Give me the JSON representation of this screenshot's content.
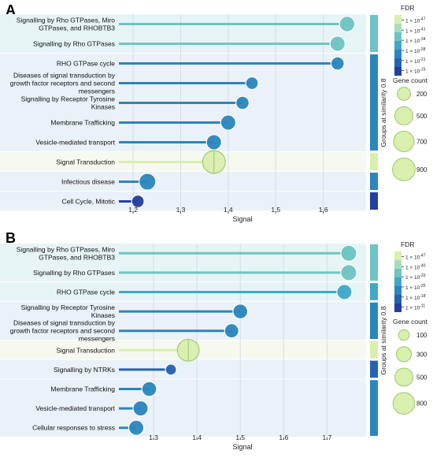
{
  "colors": {
    "fdr_scale": [
      "#d9efae",
      "#a6dcbd",
      "#6ec4c2",
      "#3fa8c8",
      "#2a86bd",
      "#2463ae",
      "#23409a"
    ],
    "band_light": "#eaf1f8",
    "band_teal": "#e6f4f5",
    "band_cream": "#f6f9ef",
    "grid": "#d8dde4"
  },
  "chart_data": [
    {
      "panel_label": "A",
      "type": "scatter",
      "xlabel": "Signal",
      "xlim": [
        1.17,
        1.69
      ],
      "xticks": [
        1.2,
        1.3,
        1.4,
        1.5,
        1.6
      ],
      "categories": [
        "Signalling by Rho GTPases, Miro GTPases, and RHOBTB3",
        "Signalling by Rho GTPases",
        "RHO GTPase cycle",
        "Diseases of signal transduction by growth factor receptors and second messengers",
        "Signalling by Receptor Tyrosine Kinases",
        "Membrane Trafficking",
        "Vesicle-mediated transport",
        "Signal Transduction",
        "Infectious disease",
        "Cell Cycle, Mitotic"
      ],
      "signal": [
        1.65,
        1.63,
        1.63,
        1.45,
        1.43,
        1.4,
        1.37,
        1.37,
        1.23,
        1.21
      ],
      "color_index": [
        2,
        2,
        4,
        4,
        4,
        4,
        4,
        0,
        4,
        6
      ],
      "gene_count": [
        320,
        300,
        200,
        170,
        200,
        300,
        300,
        900,
        400,
        170
      ],
      "groups": [
        {
          "start": 0,
          "end": 1,
          "color_index": 2,
          "band": "teal"
        },
        {
          "start": 2,
          "end": 6,
          "color_index": 4,
          "band": "light"
        },
        {
          "start": 7,
          "end": 7,
          "color_index": 0,
          "band": "cream"
        },
        {
          "start": 8,
          "end": 8,
          "color_index": 4,
          "band": "light"
        },
        {
          "start": 9,
          "end": 9,
          "color_index": 6,
          "band": "light"
        }
      ],
      "group_axis_label": "Groups at similarity 0.8",
      "legend": {
        "fdr_title": "FDR",
        "fdr_labels": [
          "1 × 10",
          "1 × 10",
          "1 × 10",
          "1 × 10",
          "1 × 10",
          "1 × 10"
        ],
        "fdr_exponents": [
          "-47",
          "-41",
          "-34",
          "-28",
          "-21",
          "-15"
        ],
        "size_title": "Gene count",
        "size_values": [
          200,
          500,
          700,
          900
        ],
        "size_labels": [
          "200",
          "500",
          "700",
          "900"
        ]
      }
    },
    {
      "panel_label": "B",
      "type": "scatter",
      "xlabel": "Signal",
      "xlim": [
        1.22,
        1.79
      ],
      "xticks": [
        1.3,
        1.4,
        1.5,
        1.6,
        1.7
      ],
      "categories": [
        "Signalling by Rho GTPases, Miro GTPases, and RHOBTB3",
        "Signalling by Rho GTPases",
        "RHO GTPase cycle",
        "Signalling by Receptor Tyrosine Kinases",
        "Diseases of signal transduction by growth factor receptors and second messengers",
        "Signal Transduction",
        "Signalling by NTRKs",
        "Membrane Trafficking",
        "Vesicle-mediated transport",
        "Cellular responses to stress"
      ],
      "signal": [
        1.75,
        1.75,
        1.74,
        1.5,
        1.48,
        1.38,
        1.34,
        1.29,
        1.27,
        1.26
      ],
      "color_index": [
        2,
        2,
        3,
        4,
        4,
        0,
        5,
        4,
        4,
        4
      ],
      "gene_count": [
        350,
        350,
        300,
        280,
        250,
        800,
        110,
        280,
        300,
        300
      ],
      "groups": [
        {
          "start": 0,
          "end": 1,
          "color_index": 2,
          "band": "teal"
        },
        {
          "start": 2,
          "end": 2,
          "color_index": 3,
          "band": "teal"
        },
        {
          "start": 3,
          "end": 4,
          "color_index": 4,
          "band": "light"
        },
        {
          "start": 5,
          "end": 5,
          "color_index": 0,
          "band": "cream"
        },
        {
          "start": 6,
          "end": 6,
          "color_index": 5,
          "band": "light"
        },
        {
          "start": 7,
          "end": 9,
          "color_index": 4,
          "band": "light"
        }
      ],
      "group_axis_label": "Groups at similarity 0.8",
      "legend": {
        "fdr_title": "FDR",
        "fdr_labels": [
          "1 × 10",
          "1 × 10",
          "1 × 10",
          "1 × 10",
          "1 × 10",
          "1 × 10"
        ],
        "fdr_exponents": [
          "-47",
          "-40",
          "-33",
          "-25",
          "-18",
          "-11"
        ],
        "size_title": "Gene count",
        "size_values": [
          100,
          300,
          500,
          800
        ],
        "size_labels": [
          "100",
          "300",
          "500",
          "800"
        ]
      }
    }
  ]
}
